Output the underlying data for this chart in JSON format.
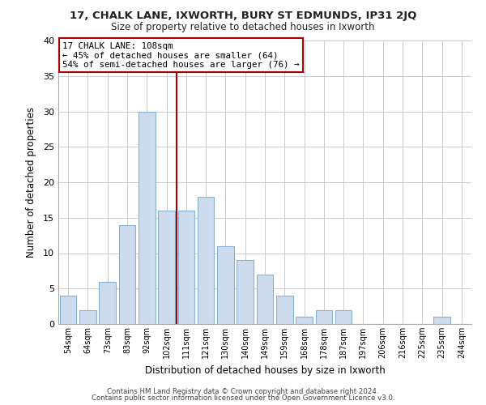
{
  "title": "17, CHALK LANE, IXWORTH, BURY ST EDMUNDS, IP31 2JQ",
  "subtitle": "Size of property relative to detached houses in Ixworth",
  "xlabel": "Distribution of detached houses by size in Ixworth",
  "ylabel": "Number of detached properties",
  "bar_labels": [
    "54sqm",
    "64sqm",
    "73sqm",
    "83sqm",
    "92sqm",
    "102sqm",
    "111sqm",
    "121sqm",
    "130sqm",
    "140sqm",
    "149sqm",
    "159sqm",
    "168sqm",
    "178sqm",
    "187sqm",
    "197sqm",
    "206sqm",
    "216sqm",
    "225sqm",
    "235sqm",
    "244sqm"
  ],
  "bar_values": [
    4,
    2,
    6,
    14,
    30,
    16,
    16,
    18,
    11,
    9,
    7,
    4,
    1,
    2,
    2,
    0,
    0,
    0,
    0,
    1,
    0
  ],
  "bar_color": "#ccdcee",
  "bar_edge_color": "#8ab0d0",
  "reference_line_x": 5.5,
  "reference_line_color": "#aa0000",
  "annotation_title": "17 CHALK LANE: 108sqm",
  "annotation_line1": "← 45% of detached houses are smaller (64)",
  "annotation_line2": "54% of semi-detached houses are larger (76) →",
  "annotation_box_color": "#ffffff",
  "annotation_box_edge_color": "#aa0000",
  "ylim": [
    0,
    40
  ],
  "yticks": [
    0,
    5,
    10,
    15,
    20,
    25,
    30,
    35,
    40
  ],
  "grid_color": "#cccccc",
  "footer_line1": "Contains HM Land Registry data © Crown copyright and database right 2024.",
  "footer_line2": "Contains public sector information licensed under the Open Government Licence v3.0.",
  "background_color": "#ffffff"
}
